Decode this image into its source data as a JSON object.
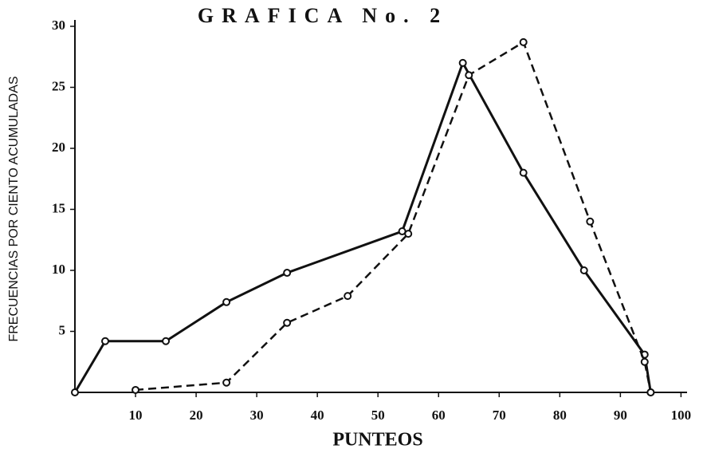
{
  "chart_data": {
    "type": "line",
    "title": "GRAFICA No. 2",
    "x_label": "PUNTEOS",
    "y_label": "FRECUENCIAS POR CIENTO ACUMULADAS",
    "xlim": [
      0,
      101
    ],
    "ylim": [
      0,
      30
    ],
    "xticks": [
      10,
      20,
      30,
      40,
      50,
      60,
      70,
      80,
      90,
      100
    ],
    "yticks": [
      5,
      10,
      15,
      20,
      25,
      30
    ],
    "series": [
      {
        "color": "#111111",
        "linestyle": "solid",
        "x": [
          0,
          5,
          15,
          25,
          35,
          54,
          64,
          74,
          84,
          94,
          95
        ],
        "values": [
          0,
          4.2,
          4.2,
          7.4,
          9.8,
          13.2,
          27,
          18,
          10,
          3.1,
          0
        ]
      },
      {
        "color": "#111111",
        "linestyle": "dashed",
        "x": [
          10,
          25,
          35,
          45,
          55,
          65,
          74,
          85,
          94,
          95
        ],
        "values": [
          0.2,
          0.8,
          5.7,
          7.9,
          13,
          26,
          28.7,
          14,
          2.5,
          0
        ]
      }
    ]
  }
}
